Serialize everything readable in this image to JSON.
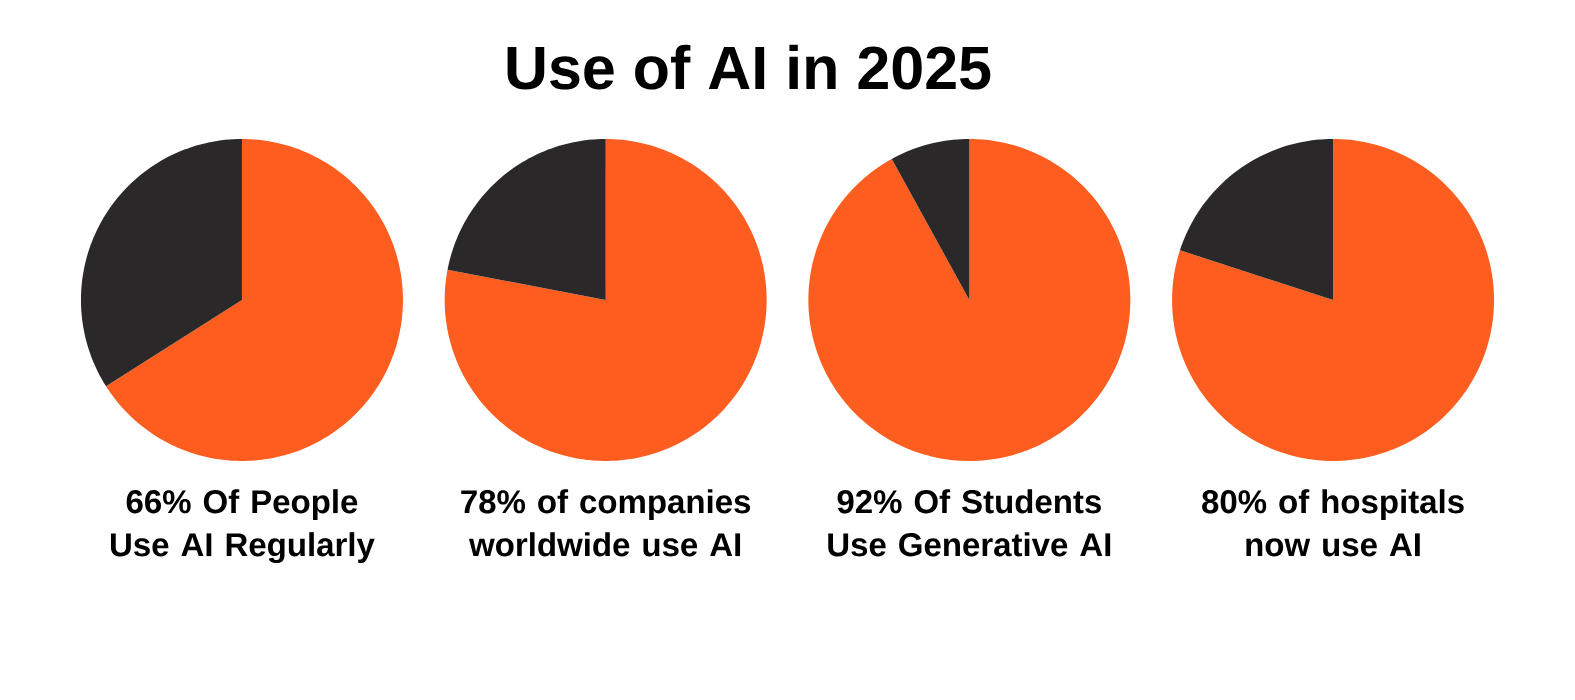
{
  "chart_data": [
    {
      "type": "other",
      "title": "Use of AI in 2025"
    },
    {
      "type": "pie",
      "title": "66% Of People Use AI Regularly",
      "categories": [
        null,
        null
      ],
      "values": [
        66,
        34
      ],
      "colors": [
        "#fd5e20",
        "#2b2829"
      ]
    },
    {
      "type": "pie",
      "title": "78% of companies worldwide use AI",
      "categories": [
        null,
        null
      ],
      "values": [
        78,
        22
      ],
      "colors": [
        "#fd5e20",
        "#2b2829"
      ]
    },
    {
      "type": "pie",
      "title": "92% Of Students Use Generative AI",
      "categories": [
        null,
        null
      ],
      "values": [
        92,
        8
      ],
      "colors": [
        "#fd5e20",
        "#2b2829"
      ]
    },
    {
      "type": "pie",
      "title": "80% of hospitals now use AI",
      "categories": [
        null,
        null
      ],
      "values": [
        80,
        20
      ],
      "colors": [
        "#fd5e20",
        "#2b2829"
      ]
    }
  ]
}
